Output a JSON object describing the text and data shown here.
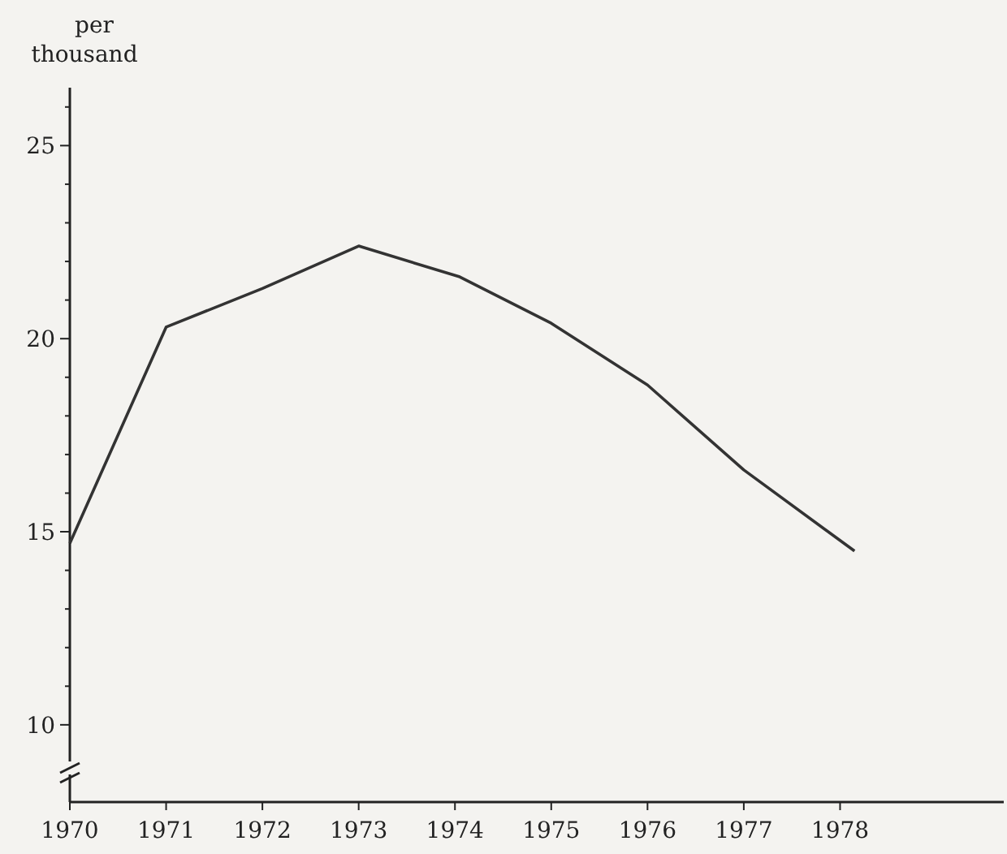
{
  "chart_data": {
    "type": "line",
    "ylabel": "per\nthousand",
    "x": [
      1970,
      1971,
      1972,
      1973,
      1974.05,
      1975,
      1976,
      1977,
      1978.15
    ],
    "series": [
      {
        "color": "#333333",
        "values": [
          14.7,
          20.3,
          21.3,
          22.4,
          21.6,
          20.4,
          18.8,
          16.6,
          14.5
        ]
      }
    ],
    "xlim": [
      1970,
      1979.7
    ],
    "xticks": [
      1970,
      1971,
      1972,
      1973,
      1974,
      1975,
      1976,
      1977,
      1978
    ],
    "ylim": [
      8,
      26.5
    ],
    "yticks": [
      10,
      {
        "value": 11,
        "label": null
      },
      {
        "value": 12,
        "label": null
      },
      {
        "value": 13,
        "label": null
      },
      {
        "value": 14,
        "label": null
      },
      15,
      {
        "value": 16,
        "label": null
      },
      {
        "value": 17,
        "label": null
      },
      {
        "value": 18,
        "label": null
      },
      {
        "value": 19,
        "label": null
      },
      20,
      {
        "value": 21,
        "label": null
      },
      {
        "value": 22,
        "label": null
      },
      {
        "value": 23,
        "label": null
      },
      {
        "value": 24,
        "label": null
      },
      25,
      {
        "value": 26,
        "label": null
      }
    ],
    "grid": false,
    "marker": "none",
    "line_style": "solid"
  }
}
